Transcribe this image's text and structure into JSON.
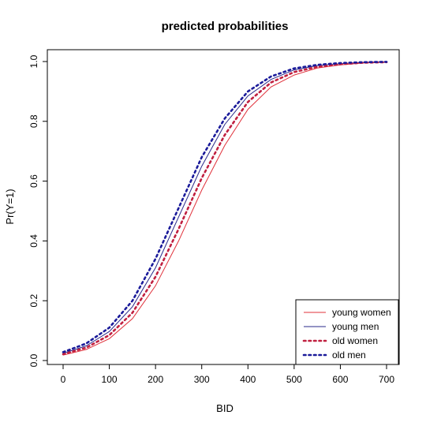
{
  "chart_data": {
    "type": "line",
    "title": "predicted probabilities",
    "xlabel": "BID",
    "ylabel": "Pr(Y=1)",
    "xlim": [
      0,
      700
    ],
    "ylim": [
      0,
      1
    ],
    "x_ticks": [
      0,
      100,
      200,
      300,
      400,
      500,
      600,
      700
    ],
    "y_ticks": [
      "0.0",
      "0.2",
      "0.4",
      "0.6",
      "0.8",
      "1.0"
    ],
    "grid": false,
    "legend_position": "bottom-right",
    "x": [
      0,
      50,
      100,
      150,
      200,
      250,
      300,
      350,
      400,
      450,
      500,
      550,
      600,
      650,
      700
    ],
    "series": [
      {
        "name": "young women",
        "color": "#e0303a",
        "style": "solid",
        "values": [
          0.018,
          0.037,
          0.073,
          0.14,
          0.25,
          0.4,
          0.57,
          0.72,
          0.84,
          0.915,
          0.955,
          0.978,
          0.989,
          0.995,
          0.998
        ]
      },
      {
        "name": "young men",
        "color": "#2a2a8a",
        "style": "solid",
        "values": [
          0.024,
          0.049,
          0.097,
          0.18,
          0.31,
          0.48,
          0.65,
          0.79,
          0.885,
          0.94,
          0.972,
          0.986,
          0.993,
          0.997,
          0.999
        ]
      },
      {
        "name": "old women",
        "color": "#c02040",
        "style": "dotted",
        "values": [
          0.021,
          0.043,
          0.085,
          0.16,
          0.28,
          0.44,
          0.61,
          0.755,
          0.865,
          0.93,
          0.965,
          0.982,
          0.991,
          0.996,
          0.998
        ]
      },
      {
        "name": "old men",
        "color": "#1a1a9a",
        "style": "dotted",
        "values": [
          0.028,
          0.057,
          0.11,
          0.2,
          0.34,
          0.51,
          0.68,
          0.81,
          0.9,
          0.95,
          0.977,
          0.989,
          0.995,
          0.998,
          0.999
        ]
      }
    ]
  }
}
